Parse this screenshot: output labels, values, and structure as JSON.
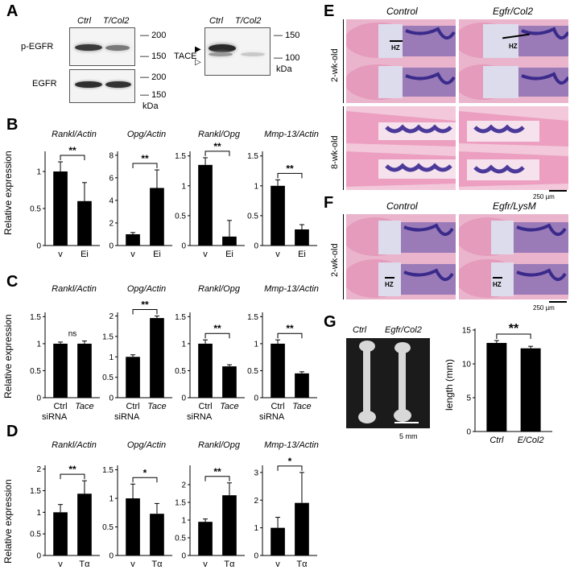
{
  "panels": {
    "a": "A",
    "b": "B",
    "c": "C",
    "d": "D",
    "e": "E",
    "f": "F",
    "g": "G"
  },
  "panel_a": {
    "lanes1": [
      "Ctrl",
      "T/Col2"
    ],
    "lanes2": [
      "Ctrl",
      "T/Col2"
    ],
    "label_pegfr": "p-EGFR",
    "label_egfr": "EGFR",
    "label_tace": "TACE",
    "mw_200a": "200",
    "mw_150a": "150",
    "mw_200b": "200",
    "mw_150b": "150",
    "mw_150c": "150",
    "mw_100c": "100",
    "kda1": "kDa",
    "kda2": "kDa"
  },
  "ylabel_relexp": "Relative expression",
  "siRNA": "siRNA",
  "chart_data": [
    {
      "id": "B1",
      "type": "bar",
      "title": "Rankl/Actin",
      "categories": [
        "v",
        "Ei"
      ],
      "values": [
        1.0,
        0.6
      ],
      "errors": [
        0.13,
        0.25
      ],
      "ylim": [
        0,
        1.25
      ],
      "yticks": [
        0,
        0.5,
        1
      ],
      "sig": "**",
      "ylabel": "Relative expression"
    },
    {
      "id": "B2",
      "type": "bar",
      "title": "Opg/Actin",
      "categories": [
        "v",
        "Ei"
      ],
      "values": [
        1.0,
        5.1
      ],
      "errors": [
        0.15,
        1.6
      ],
      "ylim": [
        0,
        8.2
      ],
      "yticks": [
        0,
        2,
        4,
        6,
        8
      ],
      "sig": "**"
    },
    {
      "id": "B3",
      "type": "bar",
      "title": "Rankl/Opg",
      "categories": [
        "v",
        "Ei"
      ],
      "values": [
        1.35,
        0.15
      ],
      "errors": [
        0.12,
        0.27
      ],
      "ylim": [
        0,
        1.55
      ],
      "yticks": [
        0,
        0.5,
        1,
        1.5
      ],
      "sig": "**"
    },
    {
      "id": "B4",
      "type": "bar",
      "title": "Mmp-13/Actin",
      "categories": [
        "v",
        "Ei"
      ],
      "values": [
        1.0,
        0.27
      ],
      "errors": [
        0.1,
        0.08
      ],
      "ylim": [
        0,
        1.55
      ],
      "yticks": [
        0,
        0.5,
        1,
        1.5
      ],
      "sig": "**"
    },
    {
      "id": "C1",
      "type": "bar",
      "title": "Rankl/Actin",
      "categories": [
        "Ctrl",
        "Tace"
      ],
      "values": [
        1.0,
        1.0
      ],
      "errors": [
        0.03,
        0.05
      ],
      "ylim": [
        0,
        1.55
      ],
      "yticks": [
        0,
        0.5,
        1,
        1.5
      ],
      "sig": "ns",
      "ylabel": "Relative expression"
    },
    {
      "id": "C2",
      "type": "bar",
      "title": "Opg/Actin",
      "categories": [
        "Ctrl",
        "Tace"
      ],
      "values": [
        1.0,
        1.95
      ],
      "errors": [
        0.05,
        0.05
      ],
      "ylim": [
        0,
        2.05
      ],
      "yticks": [
        0,
        0.5,
        1,
        1.5,
        2
      ],
      "sig": "**"
    },
    {
      "id": "C3",
      "type": "bar",
      "title": "Rankl/Opg",
      "categories": [
        "Ctrl",
        "Tace"
      ],
      "values": [
        1.0,
        0.58
      ],
      "errors": [
        0.07,
        0.03
      ],
      "ylim": [
        0,
        1.55
      ],
      "yticks": [
        0,
        0.5,
        1,
        1.5
      ],
      "sig": "**"
    },
    {
      "id": "C4",
      "type": "bar",
      "title": "Mmp-13/Actin",
      "categories": [
        "Ctrl",
        "Tace"
      ],
      "values": [
        1.0,
        0.45
      ],
      "errors": [
        0.07,
        0.03
      ],
      "ylim": [
        0,
        1.55
      ],
      "yticks": [
        0,
        0.5,
        1,
        1.5
      ],
      "sig": "**"
    },
    {
      "id": "D1",
      "type": "bar",
      "title": "Rankl/Actin",
      "categories": [
        "v",
        "Tα"
      ],
      "values": [
        1.0,
        1.43
      ],
      "errors": [
        0.18,
        0.3
      ],
      "ylim": [
        0,
        2.05
      ],
      "yticks": [
        0,
        0.5,
        1,
        1.5,
        2
      ],
      "sig": "**",
      "ylabel": "Relative expression"
    },
    {
      "id": "D2",
      "type": "bar",
      "title": "Opg/Actin",
      "categories": [
        "v",
        "Tα"
      ],
      "values": [
        1.0,
        0.73
      ],
      "errors": [
        0.25,
        0.18
      ],
      "ylim": [
        0,
        1.55
      ],
      "yticks": [
        0,
        0.5,
        1,
        1.5
      ],
      "sig": "*"
    },
    {
      "id": "D3",
      "type": "bar",
      "title": "Rankl/Opg",
      "categories": [
        "v",
        "Tα"
      ],
      "values": [
        0.95,
        1.7
      ],
      "errors": [
        0.08,
        0.35
      ],
      "ylim": [
        0,
        2.5
      ],
      "yticks": [
        0,
        0.5,
        1,
        1.5,
        2
      ],
      "sig": "**"
    },
    {
      "id": "D4",
      "type": "bar",
      "title": "Mmp-13/Actin",
      "categories": [
        "v",
        "Tα"
      ],
      "values": [
        1.0,
        1.9
      ],
      "errors": [
        0.38,
        1.1
      ],
      "ylim": [
        0,
        3.2
      ],
      "yticks": [
        0,
        1,
        2,
        3
      ],
      "sig": "*"
    },
    {
      "id": "G",
      "type": "bar",
      "title": "",
      "categories": [
        "Ctrl",
        "E/Col2"
      ],
      "values": [
        13.1,
        12.3
      ],
      "errors": [
        0.35,
        0.3
      ],
      "ylim": [
        0,
        15
      ],
      "yticks": [
        0,
        5,
        10,
        15
      ],
      "sig": "**",
      "ylabel": "length (mm)"
    }
  ],
  "panel_e": {
    "col1": "Control",
    "col2": "Egfr/Col2",
    "row1": "2-wk-old",
    "row2": "8-wk-old",
    "hz1": "HZ",
    "hz2": "HZ",
    "scale": "250 µm"
  },
  "panel_f": {
    "col1": "Control",
    "col2": "Egfr/LysM",
    "row1": "2-wk-old",
    "hz1": "HZ",
    "hz2": "HZ",
    "scale": "250 µm"
  },
  "panel_g": {
    "lab1": "Ctrl",
    "lab2": "Egfr/Col2",
    "scale": "5 mm"
  },
  "colors": {
    "bar": "#000000",
    "tissue": "#e6a8c4",
    "marrow": "#4b3a9a",
    "growth": "#dcdcec"
  }
}
